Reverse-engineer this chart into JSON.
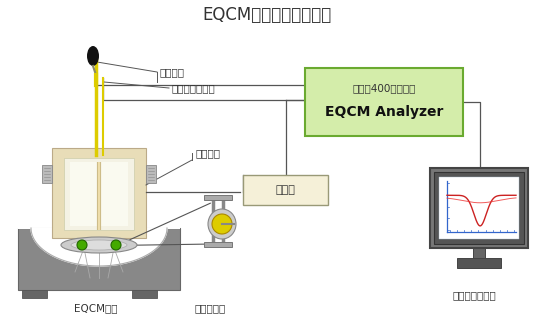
{
  "title": "EQCM計測装置の概略図",
  "title_fontsize": 12,
  "bg_color": "#ffffff",
  "label_eqcm_cell": "EQCMセル",
  "label_crystal": "水晶振動子",
  "label_computer": "コンピューター",
  "label_analyzer_line1": "モデル400シリーズ",
  "label_analyzer_line2": "EQCM Analyzer",
  "label_ref": "参照電極",
  "label_counter": "カウンター電極",
  "label_working": "作用電極",
  "label_oscillator": "発振器",
  "analyzer_box_color": "#d4edaa",
  "analyzer_border_color": "#6aaa30",
  "oscillator_box_color": "#f5f0d8",
  "oscillator_border_color": "#999977",
  "cell_body_color": "#e8ddb8",
  "cell_base_color": "#888888",
  "cell_wall_color": "#ddddcc",
  "electrode_yellow": "#ddcc00",
  "electrode_black": "#222222",
  "green_dot_color": "#44aa00",
  "crystal_yellow": "#ddcc00",
  "monitor_frame": "#666666",
  "monitor_bezel": "#444444",
  "monitor_screen_bg": "#ffffff",
  "monitor_stand": "#555555",
  "line_color": "#333333",
  "screw_color": "#aaaaaa",
  "text_color": "#333333",
  "wire_color": "#555555"
}
